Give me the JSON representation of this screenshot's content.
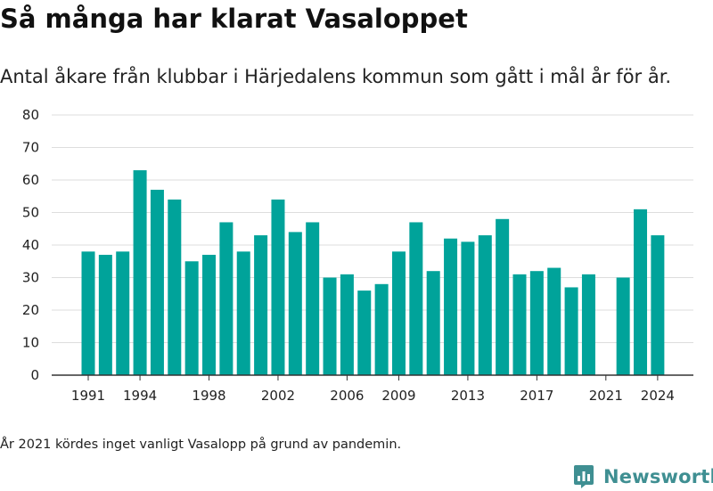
{
  "title": "Så många har klarat Vasaloppet",
  "subtitle": "Antal åkare från klubbar i Härjedalens kommun som gått i mål år för år.",
  "note": "År 2021 kördes inget vanligt Vasalopp på grund av pandemin.",
  "brand": {
    "name": "Newsworthy",
    "color": "#3f8f92"
  },
  "colors": {
    "bar": "#00a39a",
    "grid": "#dddddd",
    "axis": "#333333"
  },
  "chart_data": {
    "type": "bar",
    "title": "Så många har klarat Vasaloppet",
    "subtitle": "Antal åkare från klubbar i Härjedalens kommun som gått i mål år för år.",
    "xlabel": "",
    "ylabel": "",
    "ylim": [
      0,
      80
    ],
    "yticks": [
      0,
      10,
      20,
      30,
      40,
      50,
      60,
      70,
      80
    ],
    "xtick_labels": [
      "1991",
      "1994",
      "1998",
      "2002",
      "2006",
      "2009",
      "2013",
      "2017",
      "2021",
      "2024"
    ],
    "grid": true,
    "categories": [
      1991,
      1992,
      1993,
      1994,
      1995,
      1996,
      1997,
      1998,
      1999,
      2000,
      2001,
      2002,
      2003,
      2004,
      2005,
      2006,
      2007,
      2008,
      2009,
      2010,
      2011,
      2012,
      2013,
      2014,
      2015,
      2016,
      2017,
      2018,
      2019,
      2020,
      2021,
      2022,
      2023,
      2024
    ],
    "values": [
      38,
      37,
      38,
      63,
      57,
      54,
      35,
      37,
      47,
      38,
      43,
      54,
      44,
      47,
      30,
      31,
      26,
      28,
      38,
      47,
      32,
      42,
      41,
      43,
      48,
      31,
      32,
      33,
      27,
      31,
      null,
      30,
      51,
      43
    ]
  }
}
